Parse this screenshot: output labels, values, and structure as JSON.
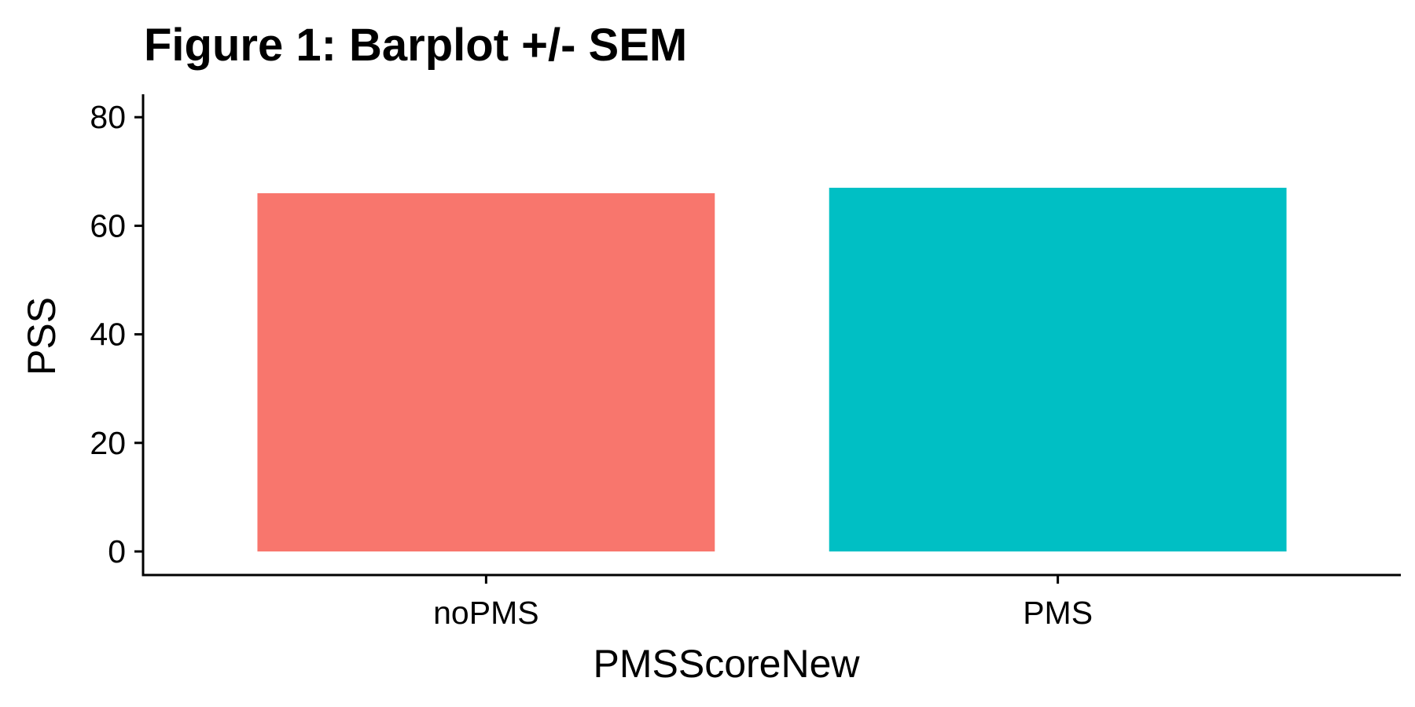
{
  "chart_data": {
    "type": "bar",
    "title": "Figure 1: Barplot +/- SEM",
    "xlabel": "PMSScoreNew",
    "ylabel": "PSS",
    "categories": [
      "noPMS",
      "PMS"
    ],
    "values": [
      66,
      67
    ],
    "colors": [
      "#F8766D",
      "#00BFC4"
    ],
    "ylim": [
      0,
      84
    ],
    "yticks": [
      0,
      20,
      40,
      60,
      80
    ],
    "ytick_labels": [
      "0",
      "20",
      "40",
      "60",
      "80"
    ],
    "grid": false,
    "legend": "none"
  }
}
